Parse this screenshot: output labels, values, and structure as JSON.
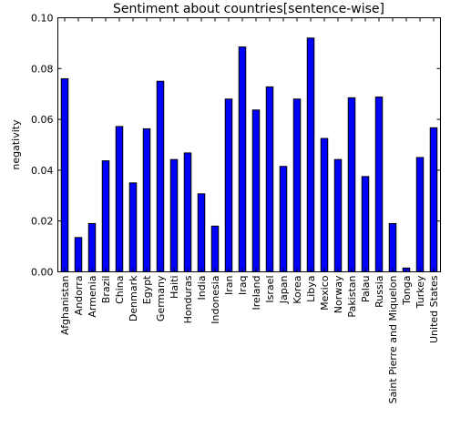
{
  "chart_data": {
    "type": "bar",
    "title": "Sentiment about countries[sentence-wise]",
    "xlabel": "",
    "ylabel": "negativity",
    "ylim": [
      0,
      0.1
    ],
    "yticks": [
      "0.00",
      "0.02",
      "0.04",
      "0.06",
      "0.08",
      "0.10"
    ],
    "grid": false,
    "bar_color": "#0000ff",
    "categories": [
      "Afghanistan",
      "Andorra",
      "Armenia",
      "Brazil",
      "China",
      "Denmark",
      "Egypt",
      "Germany",
      "Haiti",
      "Honduras",
      "India",
      "Indonesia",
      "Iran",
      "Iraq",
      "Ireland",
      "Israel",
      "Japan",
      "Korea",
      "Libya",
      "Mexico",
      "Norway",
      "Pakistan",
      "Palau",
      "Russia",
      "Saint Pierre and Miquelon",
      "Tonga",
      "Turkey",
      "United States"
    ],
    "values": [
      0.076,
      0.0135,
      0.019,
      0.0437,
      0.0572,
      0.035,
      0.0563,
      0.075,
      0.0442,
      0.0468,
      0.0307,
      0.018,
      0.068,
      0.0885,
      0.0637,
      0.0728,
      0.0415,
      0.068,
      0.092,
      0.0525,
      0.0442,
      0.0685,
      0.0375,
      0.0688,
      0.019,
      0.0015,
      0.045,
      0.0567
    ]
  }
}
